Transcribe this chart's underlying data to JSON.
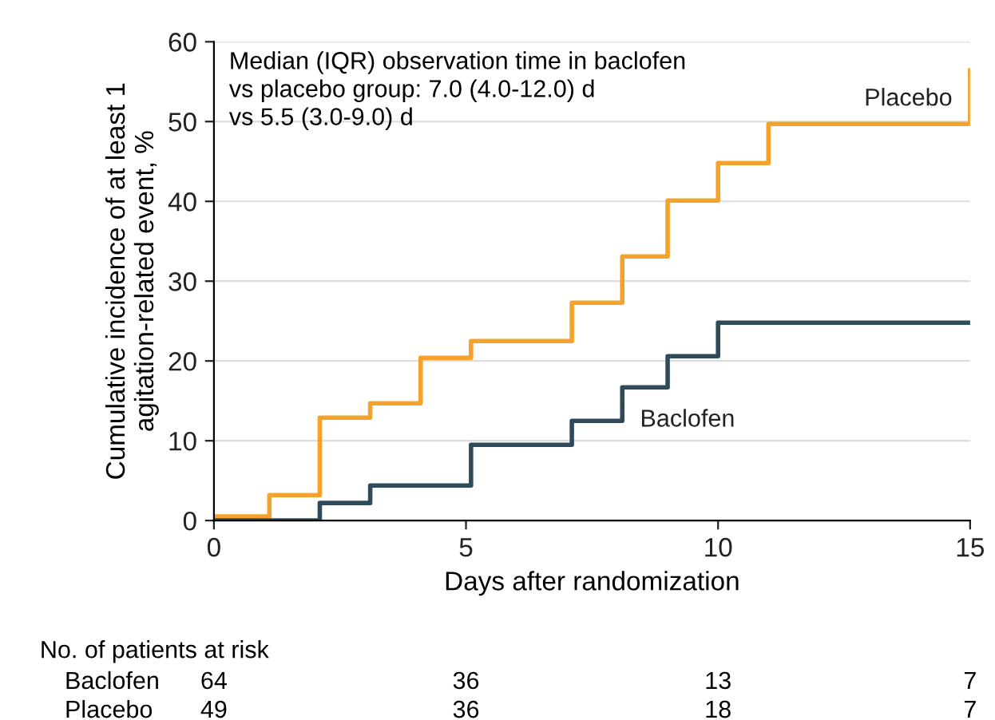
{
  "chart_data": {
    "type": "step",
    "xlabel": "Days after randomization",
    "ylabel": "Cumulative incidence of at least 1\nagitation-related event, %",
    "xlim": [
      0,
      15
    ],
    "ylim": [
      0,
      60
    ],
    "xticks": [
      0,
      5,
      10,
      15
    ],
    "yticks": [
      0,
      10,
      20,
      30,
      40,
      50,
      60
    ],
    "grid": "y",
    "legend": false,
    "series": [
      {
        "name": "Placebo",
        "color": "#f5a12a",
        "x": [
          0,
          1.1,
          2.1,
          3.1,
          4.1,
          5.1,
          7.1,
          8.1,
          9.0,
          10.0,
          11.0,
          15,
          15
        ],
        "values": [
          0.5,
          3.2,
          12.9,
          14.7,
          20.4,
          22.5,
          27.3,
          33.1,
          40.1,
          44.8,
          49.7,
          49.7,
          56.4
        ]
      },
      {
        "name": "Baclofen",
        "color": "#2f4b5a",
        "x": [
          0,
          2.1,
          3.1,
          5.1,
          7.1,
          8.1,
          9.0,
          10.0,
          15
        ],
        "values": [
          0,
          2.2,
          4.4,
          9.5,
          12.5,
          16.7,
          20.6,
          24.8,
          24.8
        ]
      }
    ],
    "annotations": [
      "Median (IQR) observation time in baclofen\nvs placebo group: 7.0 (4.0-12.0) d\nvs 5.5 (3.0-9.0) d",
      "No. of patients at risk",
      "Baclofen",
      "64",
      "36",
      "13",
      "7",
      "Placebo",
      "49",
      "36",
      "18",
      "7"
    ]
  }
}
